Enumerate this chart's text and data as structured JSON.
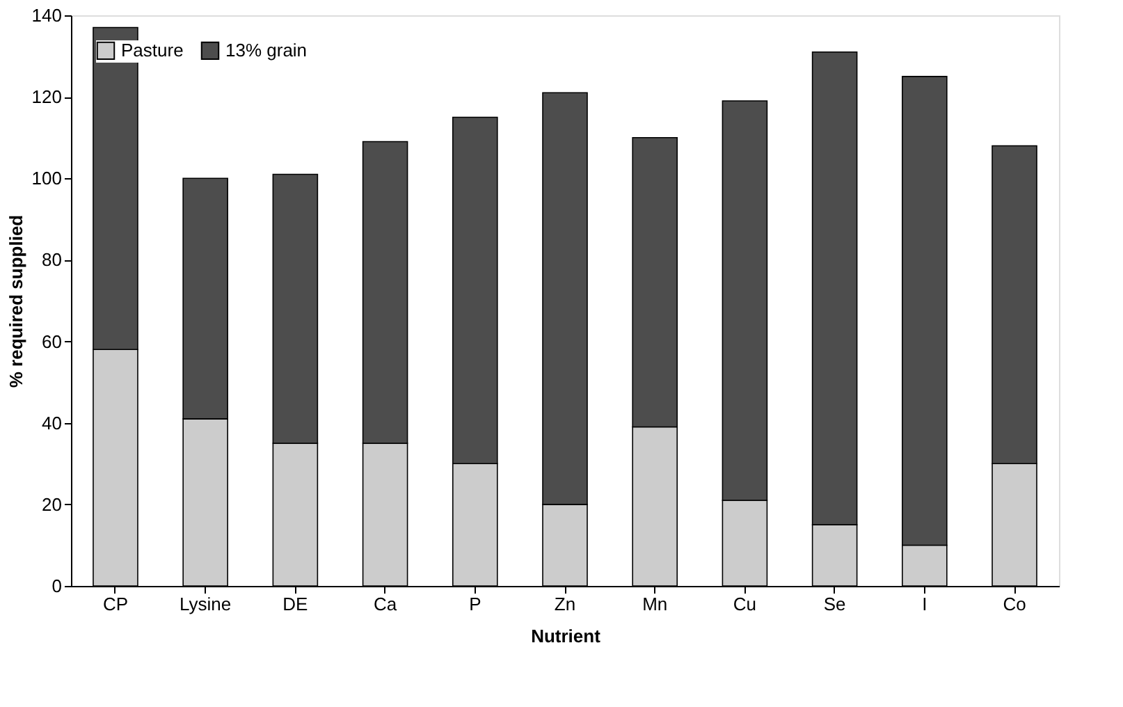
{
  "chart_data": {
    "type": "bar",
    "stacked": true,
    "xlabel": "Nutrient",
    "ylabel": "% required supplied",
    "categories": [
      "CP",
      "Lysine",
      "DE",
      "Ca",
      "P",
      "Zn",
      "Mn",
      "Cu",
      "Se",
      "I",
      "Co"
    ],
    "series": [
      {
        "name": "Pasture",
        "color": "#cccccc",
        "values": [
          58,
          41,
          35,
          35,
          30,
          20,
          39,
          21,
          15,
          10,
          30
        ]
      },
      {
        "name": "13% grain",
        "color": "#4d4d4d",
        "values": [
          79,
          59,
          66,
          74,
          85,
          101,
          71,
          98,
          116,
          115,
          78
        ]
      }
    ],
    "ylim": [
      0,
      140
    ],
    "yticks": [
      0,
      20,
      40,
      60,
      80,
      100,
      120,
      140
    ],
    "grid": false,
    "legend": "top left"
  }
}
